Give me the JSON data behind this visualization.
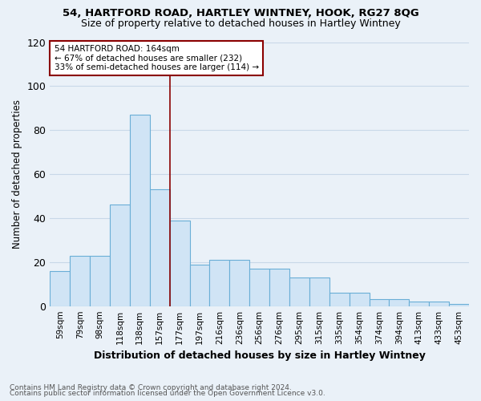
{
  "title1": "54, HARTFORD ROAD, HARTLEY WINTNEY, HOOK, RG27 8QG",
  "title2": "Size of property relative to detached houses in Hartley Wintney",
  "xlabel": "Distribution of detached houses by size in Hartley Wintney",
  "ylabel": "Number of detached properties",
  "categories": [
    "59sqm",
    "79sqm",
    "98sqm",
    "118sqm",
    "138sqm",
    "157sqm",
    "177sqm",
    "197sqm",
    "216sqm",
    "236sqm",
    "256sqm",
    "276sqm",
    "295sqm",
    "315sqm",
    "335sqm",
    "354sqm",
    "374sqm",
    "394sqm",
    "413sqm",
    "433sqm",
    "453sqm"
  ],
  "values": [
    16,
    23,
    23,
    46,
    87,
    53,
    39,
    19,
    21,
    21,
    17,
    17,
    13,
    13,
    6,
    6,
    3,
    3,
    2,
    2,
    1
  ],
  "bar_color": "#d0e4f5",
  "bar_edge_color": "#6aaed6",
  "bg_color": "#eaf1f8",
  "grid_color": "#c8d8e8",
  "vline_x": 5.5,
  "vline_color": "#8b0000",
  "annotation_line1": "54 HARTFORD ROAD: 164sqm",
  "annotation_line2": "← 67% of detached houses are smaller (232)",
  "annotation_line3": "33% of semi-detached houses are larger (114) →",
  "annotation_box_color": "#ffffff",
  "annotation_box_edge": "#8b0000",
  "footer1": "Contains HM Land Registry data © Crown copyright and database right 2024.",
  "footer2": "Contains public sector information licensed under the Open Government Licence v3.0.",
  "ylim": [
    0,
    120
  ],
  "yticks": [
    0,
    20,
    40,
    60,
    80,
    100,
    120
  ]
}
